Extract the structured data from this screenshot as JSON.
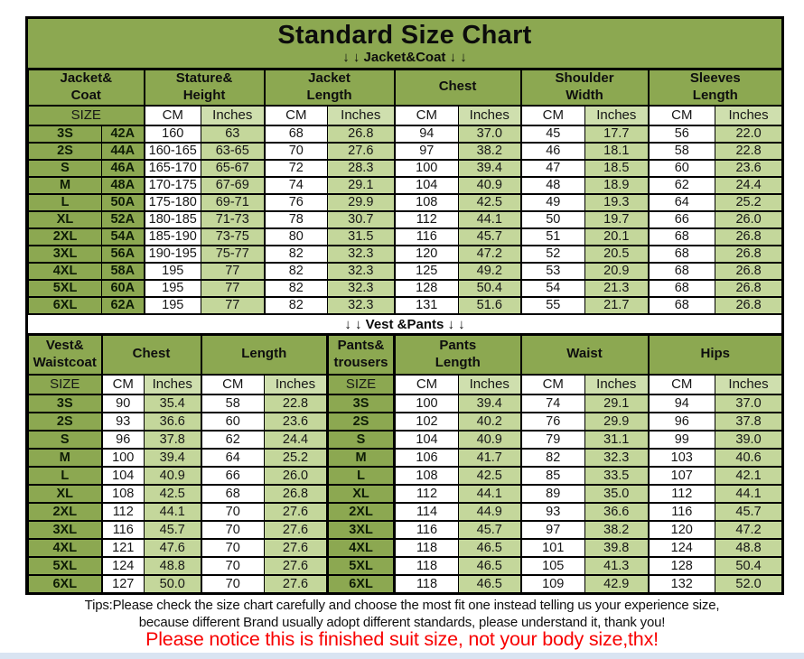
{
  "page": {
    "title": "Standard Size Chart",
    "jacket_banner": "↓ ↓  Jacket&Coat ↓ ↓",
    "vest_banner": "↓ ↓  Vest &Pants ↓ ↓",
    "tips_line1": "Tips:Please check the size chart carefully and choose the most fit one instead telling us your experience size,",
    "tips_line2": "because different Brand usually adopt different standards, please understand it, thank you!",
    "notice": "Please notice this is finished suit size, not your body size,thx!"
  },
  "colors": {
    "header_green": "#8CA851",
    "cell_light_green": "#C4D79B",
    "unit_header_green": "#CFDFAE",
    "notice_red": "#F80000",
    "border_black": "#000000"
  },
  "jacket_table": {
    "groups": [
      {
        "label": "Jacket&\nCoat",
        "span": 2
      },
      {
        "label": "Stature&\nHeight",
        "span": 2
      },
      {
        "label": "Jacket\nLength",
        "span": 2
      },
      {
        "label": "Chest",
        "span": 2
      },
      {
        "label": "Shoulder\nWidth",
        "span": 2
      },
      {
        "label": "Sleeves\nLength",
        "span": 2
      }
    ],
    "units": [
      {
        "label": "SIZE",
        "span": 2,
        "kind": "size"
      },
      {
        "label": "CM",
        "kind": "cm"
      },
      {
        "label": "Inches",
        "kind": "inh"
      },
      {
        "label": "CM",
        "kind": "cm"
      },
      {
        "label": "Inches",
        "kind": "inh"
      },
      {
        "label": "CM",
        "kind": "cm"
      },
      {
        "label": "Inches",
        "kind": "inh"
      },
      {
        "label": "CM",
        "kind": "cm"
      },
      {
        "label": "Inches",
        "kind": "inh"
      },
      {
        "label": "CM",
        "kind": "cm"
      },
      {
        "label": "Inches",
        "kind": "inh"
      }
    ],
    "col_kinds": [
      "size",
      "size",
      "cm",
      "in",
      "cm",
      "in",
      "cm",
      "in",
      "cm",
      "in",
      "cm",
      "in"
    ],
    "group_end_cols": [
      1,
      3,
      5,
      7,
      9
    ],
    "rows": [
      [
        "3S",
        "42A",
        "160",
        "63",
        "68",
        "26.8",
        "94",
        "37.0",
        "45",
        "17.7",
        "56",
        "22.0"
      ],
      [
        "2S",
        "44A",
        "160-165",
        "63-65",
        "70",
        "27.6",
        "97",
        "38.2",
        "46",
        "18.1",
        "58",
        "22.8"
      ],
      [
        "S",
        "46A",
        "165-170",
        "65-67",
        "72",
        "28.3",
        "100",
        "39.4",
        "47",
        "18.5",
        "60",
        "23.6"
      ],
      [
        "M",
        "48A",
        "170-175",
        "67-69",
        "74",
        "29.1",
        "104",
        "40.9",
        "48",
        "18.9",
        "62",
        "24.4"
      ],
      [
        "L",
        "50A",
        "175-180",
        "69-71",
        "76",
        "29.9",
        "108",
        "42.5",
        "49",
        "19.3",
        "64",
        "25.2"
      ],
      [
        "XL",
        "52A",
        "180-185",
        "71-73",
        "78",
        "30.7",
        "112",
        "44.1",
        "50",
        "19.7",
        "66",
        "26.0"
      ],
      [
        "2XL",
        "54A",
        "185-190",
        "73-75",
        "80",
        "31.5",
        "116",
        "45.7",
        "51",
        "20.1",
        "68",
        "26.8"
      ],
      [
        "3XL",
        "56A",
        "190-195",
        "75-77",
        "82",
        "32.3",
        "120",
        "47.2",
        "52",
        "20.5",
        "68",
        "26.8"
      ],
      [
        "4XL",
        "58A",
        "195",
        "77",
        "82",
        "32.3",
        "125",
        "49.2",
        "53",
        "20.9",
        "68",
        "26.8"
      ],
      [
        "5XL",
        "60A",
        "195",
        "77",
        "82",
        "32.3",
        "128",
        "50.4",
        "54",
        "21.3",
        "68",
        "26.8"
      ],
      [
        "6XL",
        "62A",
        "195",
        "77",
        "82",
        "32.3",
        "131",
        "51.6",
        "55",
        "21.7",
        "68",
        "26.8"
      ]
    ]
  },
  "vest_table": {
    "groups": [
      {
        "label": "Vest&\nWaistcoat"
      },
      {
        "label": "Chest",
        "span": 2
      },
      {
        "label": "Length",
        "span": 2
      },
      {
        "label": "Pants&\ntrousers",
        "kind": "size2"
      },
      {
        "label": "Pants\nLength",
        "span": 2
      },
      {
        "label": "Waist",
        "span": 2
      },
      {
        "label": "Hips",
        "span": 2
      }
    ],
    "units": [
      {
        "label": "SIZE",
        "kind": "size"
      },
      {
        "label": "CM",
        "kind": "cm"
      },
      {
        "label": "Inches",
        "kind": "inh"
      },
      {
        "label": "CM",
        "kind": "cm"
      },
      {
        "label": "Inches",
        "kind": "inh"
      },
      {
        "label": "SIZE",
        "kind": "size2"
      },
      {
        "label": "CM",
        "kind": "cm"
      },
      {
        "label": "Inches",
        "kind": "inh"
      },
      {
        "label": "CM",
        "kind": "cm"
      },
      {
        "label": "Inches",
        "kind": "inh"
      },
      {
        "label": "CM",
        "kind": "cm"
      },
      {
        "label": "Inches",
        "kind": "inh"
      }
    ],
    "col_kinds": [
      "size",
      "cm",
      "in",
      "cm",
      "in",
      "size2",
      "cm",
      "in",
      "cm",
      "in",
      "cm",
      "in"
    ],
    "group_end_cols": [
      0,
      2,
      4,
      5,
      7,
      9
    ],
    "rows": [
      [
        "3S",
        "90",
        "35.4",
        "58",
        "22.8",
        "3S",
        "100",
        "39.4",
        "74",
        "29.1",
        "94",
        "37.0"
      ],
      [
        "2S",
        "93",
        "36.6",
        "60",
        "23.6",
        "2S",
        "102",
        "40.2",
        "76",
        "29.9",
        "96",
        "37.8"
      ],
      [
        "S",
        "96",
        "37.8",
        "62",
        "24.4",
        "S",
        "104",
        "40.9",
        "79",
        "31.1",
        "99",
        "39.0"
      ],
      [
        "M",
        "100",
        "39.4",
        "64",
        "25.2",
        "M",
        "106",
        "41.7",
        "82",
        "32.3",
        "103",
        "40.6"
      ],
      [
        "L",
        "104",
        "40.9",
        "66",
        "26.0",
        "L",
        "108",
        "42.5",
        "85",
        "33.5",
        "107",
        "42.1"
      ],
      [
        "XL",
        "108",
        "42.5",
        "68",
        "26.8",
        "XL",
        "112",
        "44.1",
        "89",
        "35.0",
        "112",
        "44.1"
      ],
      [
        "2XL",
        "112",
        "44.1",
        "70",
        "27.6",
        "2XL",
        "114",
        "44.9",
        "93",
        "36.6",
        "116",
        "45.7"
      ],
      [
        "3XL",
        "116",
        "45.7",
        "70",
        "27.6",
        "3XL",
        "116",
        "45.7",
        "97",
        "38.2",
        "120",
        "47.2"
      ],
      [
        "4XL",
        "121",
        "47.6",
        "70",
        "27.6",
        "4XL",
        "118",
        "46.5",
        "101",
        "39.8",
        "124",
        "48.8"
      ],
      [
        "5XL",
        "124",
        "48.8",
        "70",
        "27.6",
        "5XL",
        "118",
        "46.5",
        "105",
        "41.3",
        "128",
        "50.4"
      ],
      [
        "6XL",
        "127",
        "50.0",
        "70",
        "27.6",
        "6XL",
        "118",
        "46.5",
        "109",
        "42.9",
        "132",
        "52.0"
      ]
    ]
  }
}
